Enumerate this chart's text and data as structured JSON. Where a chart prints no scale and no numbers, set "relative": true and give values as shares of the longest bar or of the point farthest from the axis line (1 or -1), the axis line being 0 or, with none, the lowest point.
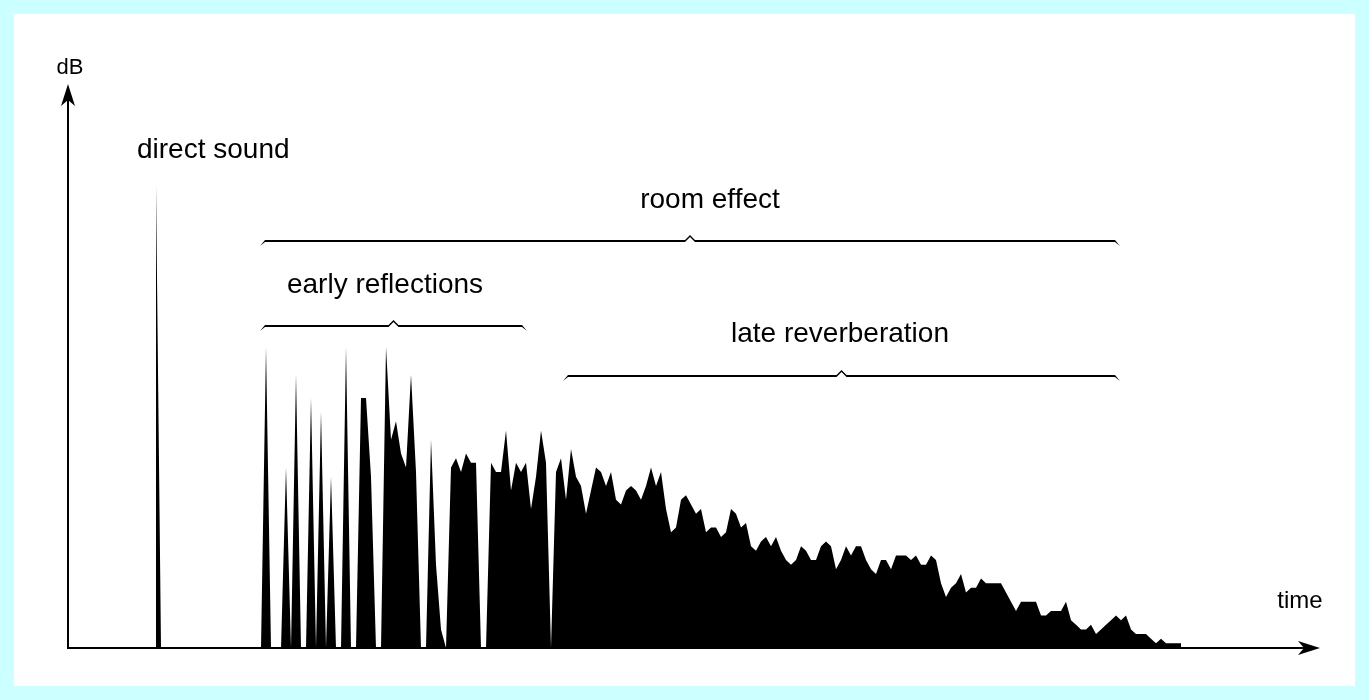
{
  "chart_data": {
    "type": "area",
    "relative": true,
    "xlabel": "time",
    "annotations": [
      "direct sound",
      "room effect",
      "early reflections",
      "late reverberation",
      "dB"
    ],
    "categories": [
      null,
      null,
      null,
      null,
      null,
      null,
      null,
      null,
      null,
      null,
      null,
      null,
      null,
      null,
      null,
      null,
      null,
      null,
      null,
      null,
      null,
      null,
      null,
      null,
      null,
      null,
      null,
      null,
      null,
      null,
      null,
      null,
      null,
      null,
      null,
      null,
      null,
      null,
      null,
      null,
      null,
      null,
      null,
      null,
      null,
      null,
      null,
      null,
      null,
      null,
      null,
      null,
      null,
      null,
      null,
      null,
      null,
      null,
      null,
      null,
      null,
      null,
      null,
      null,
      null,
      null,
      null,
      null,
      null,
      null,
      null,
      null,
      null,
      null,
      null,
      null,
      null,
      null,
      null,
      null,
      null,
      null,
      null,
      null,
      null,
      null,
      null,
      null,
      null,
      null,
      null,
      null,
      null,
      null,
      null,
      null,
      null,
      null,
      null,
      null,
      null,
      null,
      null,
      null,
      null,
      null,
      null,
      null,
      null,
      null,
      null,
      null,
      null,
      null,
      null,
      null,
      null,
      null,
      null,
      null,
      null,
      null,
      null,
      null,
      null,
      null,
      null,
      null,
      null,
      null,
      null,
      null,
      null,
      null,
      null,
      null,
      null,
      null,
      null,
      null,
      null,
      null,
      null,
      null,
      null,
      null,
      null,
      null,
      null,
      null,
      null,
      null,
      null,
      null,
      null,
      null,
      null,
      null,
      null,
      null,
      null,
      null,
      null,
      null,
      null,
      null,
      null,
      null,
      null,
      null,
      null,
      null,
      null,
      null,
      null,
      null,
      null,
      null,
      null,
      null,
      null,
      null,
      null,
      null,
      null,
      null,
      null,
      null,
      null,
      null,
      null,
      null,
      null,
      null,
      null,
      null,
      null,
      null,
      null,
      null,
      null,
      null,
      null,
      null,
      null,
      null
    ],
    "series": [
      {
        "color": "#000000",
        "values": [
          1,
          0,
          0,
          0,
          0,
          0,
          0,
          0,
          0,
          0,
          0,
          0,
          0,
          0,
          0,
          0,
          0,
          0,
          0,
          0,
          0,
          0,
          0.65,
          0,
          0,
          0,
          0.39,
          0,
          0.59,
          0,
          0,
          0.54,
          0,
          0.51,
          0,
          0.37,
          0,
          0,
          0.65,
          0,
          0,
          0.54,
          0.54,
          0.37,
          0,
          0,
          0.65,
          0.45,
          0.49,
          0.42,
          0.39,
          0.59,
          0.38,
          0,
          0,
          0.45,
          0.18,
          0.04,
          0,
          0.39,
          0.41,
          0.38,
          0.42,
          0.4,
          0.4,
          0,
          0,
          0.4,
          0.38,
          0.38,
          0.47,
          0.34,
          0.4,
          0.38,
          0.4,
          0.3,
          0.37,
          0.47,
          0.4,
          0,
          0.38,
          0.41,
          0.32,
          0.43,
          0.37,
          0.35,
          0.29,
          0.34,
          0.39,
          0.38,
          0.35,
          0.38,
          0.32,
          0.31,
          0.34,
          0.35,
          0.34,
          0.32,
          0.35,
          0.39,
          0.35,
          0.38,
          0.3,
          0.25,
          0.26,
          0.32,
          0.33,
          0.31,
          0.29,
          0.3,
          0.25,
          0.26,
          0.26,
          0.24,
          0.25,
          0.3,
          0.29,
          0.26,
          0.27,
          0.22,
          0.21,
          0.23,
          0.24,
          0.22,
          0.24,
          0.21,
          0.19,
          0.18,
          0.19,
          0.22,
          0.21,
          0.19,
          0.19,
          0.22,
          0.23,
          0.22,
          0.17,
          0.19,
          0.22,
          0.2,
          0.22,
          0.22,
          0.19,
          0.17,
          0.16,
          0.19,
          0.19,
          0.17,
          0.2,
          0.2,
          0.2,
          0.19,
          0.2,
          0.18,
          0.18,
          0.2,
          0.19,
          0.14,
          0.11,
          0.13,
          0.14,
          0.16,
          0.12,
          0.13,
          0.13,
          0.15,
          0.14,
          0.14,
          0.14,
          0.14,
          0.12,
          0.1,
          0.08,
          0.1,
          0.1,
          0.1,
          0.1,
          0.07,
          0.07,
          0.08,
          0.08,
          0.08,
          0.1,
          0.06,
          0.05,
          0.04,
          0.04,
          0.05,
          0.03,
          0.04,
          0.05,
          0.06,
          0.07,
          0.06,
          0.07,
          0.04,
          0.03,
          0.03,
          0.03,
          0.02,
          0.01,
          0.02,
          0.01,
          0.01,
          0.01,
          0.01
        ]
      }
    ]
  }
}
